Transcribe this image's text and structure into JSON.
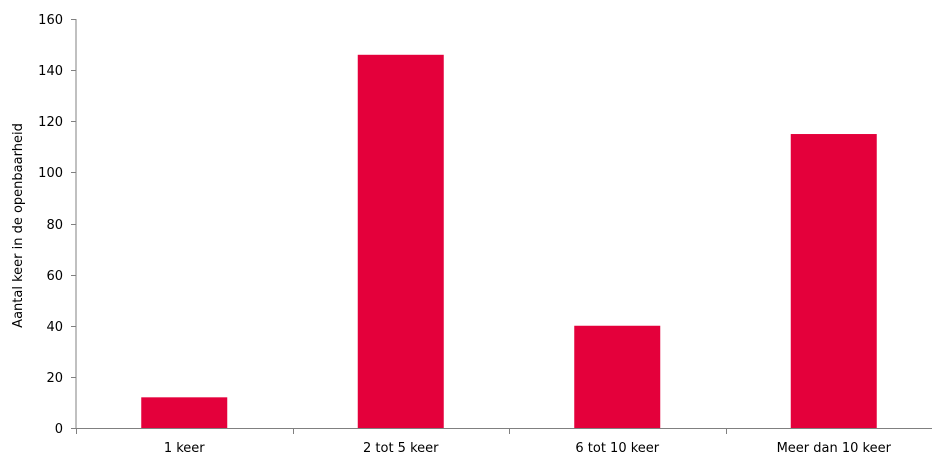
{
  "chart_data": {
    "type": "bar",
    "title": "",
    "xlabel": "",
    "ylabel": "Aantal keer in de openbaarheid",
    "categories": [
      "1 keer",
      "2 tot 5 keer",
      "6 tot 10 keer",
      "Meer dan 10 keer"
    ],
    "values": [
      12,
      146,
      40,
      115
    ],
    "ylim": [
      0,
      160
    ],
    "yticks": [
      0,
      20,
      40,
      60,
      80,
      100,
      120,
      140,
      160
    ],
    "grid": false,
    "legend": "none",
    "bar_color": "#e4003b"
  }
}
